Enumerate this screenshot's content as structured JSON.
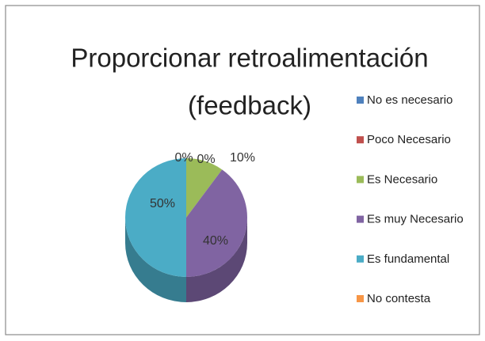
{
  "chart_data": {
    "type": "pie",
    "title": "Proporcionar retroalimentación",
    "subtitle": "(feedback)",
    "categories": [
      "No es necesario",
      "Poco Necesario",
      "Es Necesario",
      "Es muy Necesario",
      "Es fundamental",
      "No contesta"
    ],
    "values": [
      0,
      0,
      10,
      40,
      50,
      0
    ],
    "value_labels": [
      "0%",
      "0%",
      "10%",
      "40%",
      "50%",
      null
    ],
    "colors": [
      "#4f81bd",
      "#c0504d",
      "#9bbb59",
      "#8064a2",
      "#4bacc6",
      "#f79646"
    ],
    "legend": "right"
  }
}
